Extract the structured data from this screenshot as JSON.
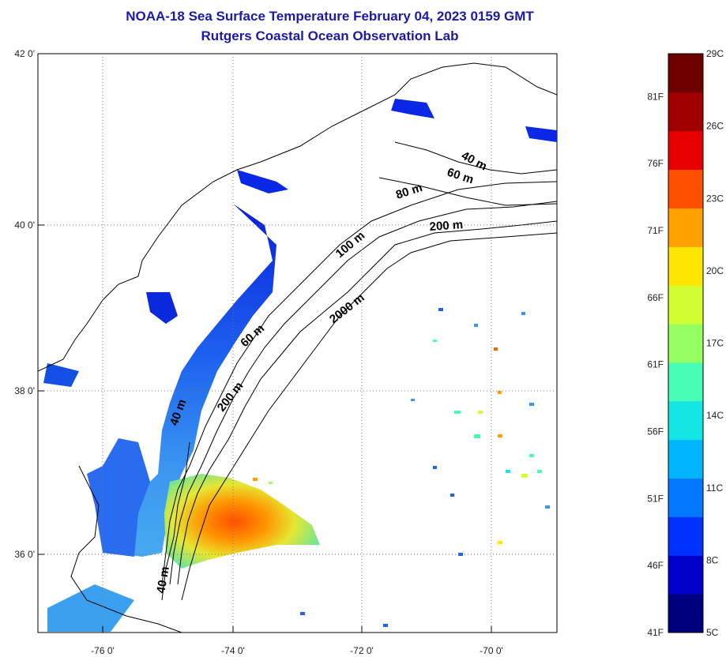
{
  "title": "NOAA-18 Sea Surface Temperature February 04, 2023 0159 GMT",
  "subtitle": "Rutgers Coastal Ocean Observation Lab",
  "latitude_ticks": [
    "42 0'",
    "40 0'",
    "38 0'",
    "36 0'"
  ],
  "longitude_ticks": [
    "-76 0'",
    "-74 0'",
    "-72 0'",
    "-70 0'"
  ],
  "contour_labels": [
    "40 m",
    "60 m",
    "80 m",
    "200 m",
    "100 m",
    "2000 m",
    "60 m",
    "200 m",
    "40 m",
    "40 m"
  ],
  "colorbar": {
    "fahrenheit_labels": [
      "81F",
      "76F",
      "71F",
      "66F",
      "61F",
      "56F",
      "51F",
      "46F",
      "41F"
    ],
    "celsius_labels": [
      "29C",
      "26C",
      "23C",
      "20C",
      "17C",
      "14C",
      "11C",
      "8C",
      "5C"
    ],
    "colors": [
      "#00007f",
      "#0000c8",
      "#0032ff",
      "#0078ff",
      "#00b4ff",
      "#14e6e6",
      "#46ffb4",
      "#96ff64",
      "#d2ff32",
      "#ffe600",
      "#ffa000",
      "#ff5000",
      "#e60000",
      "#a00000",
      "#6e0000"
    ]
  }
}
